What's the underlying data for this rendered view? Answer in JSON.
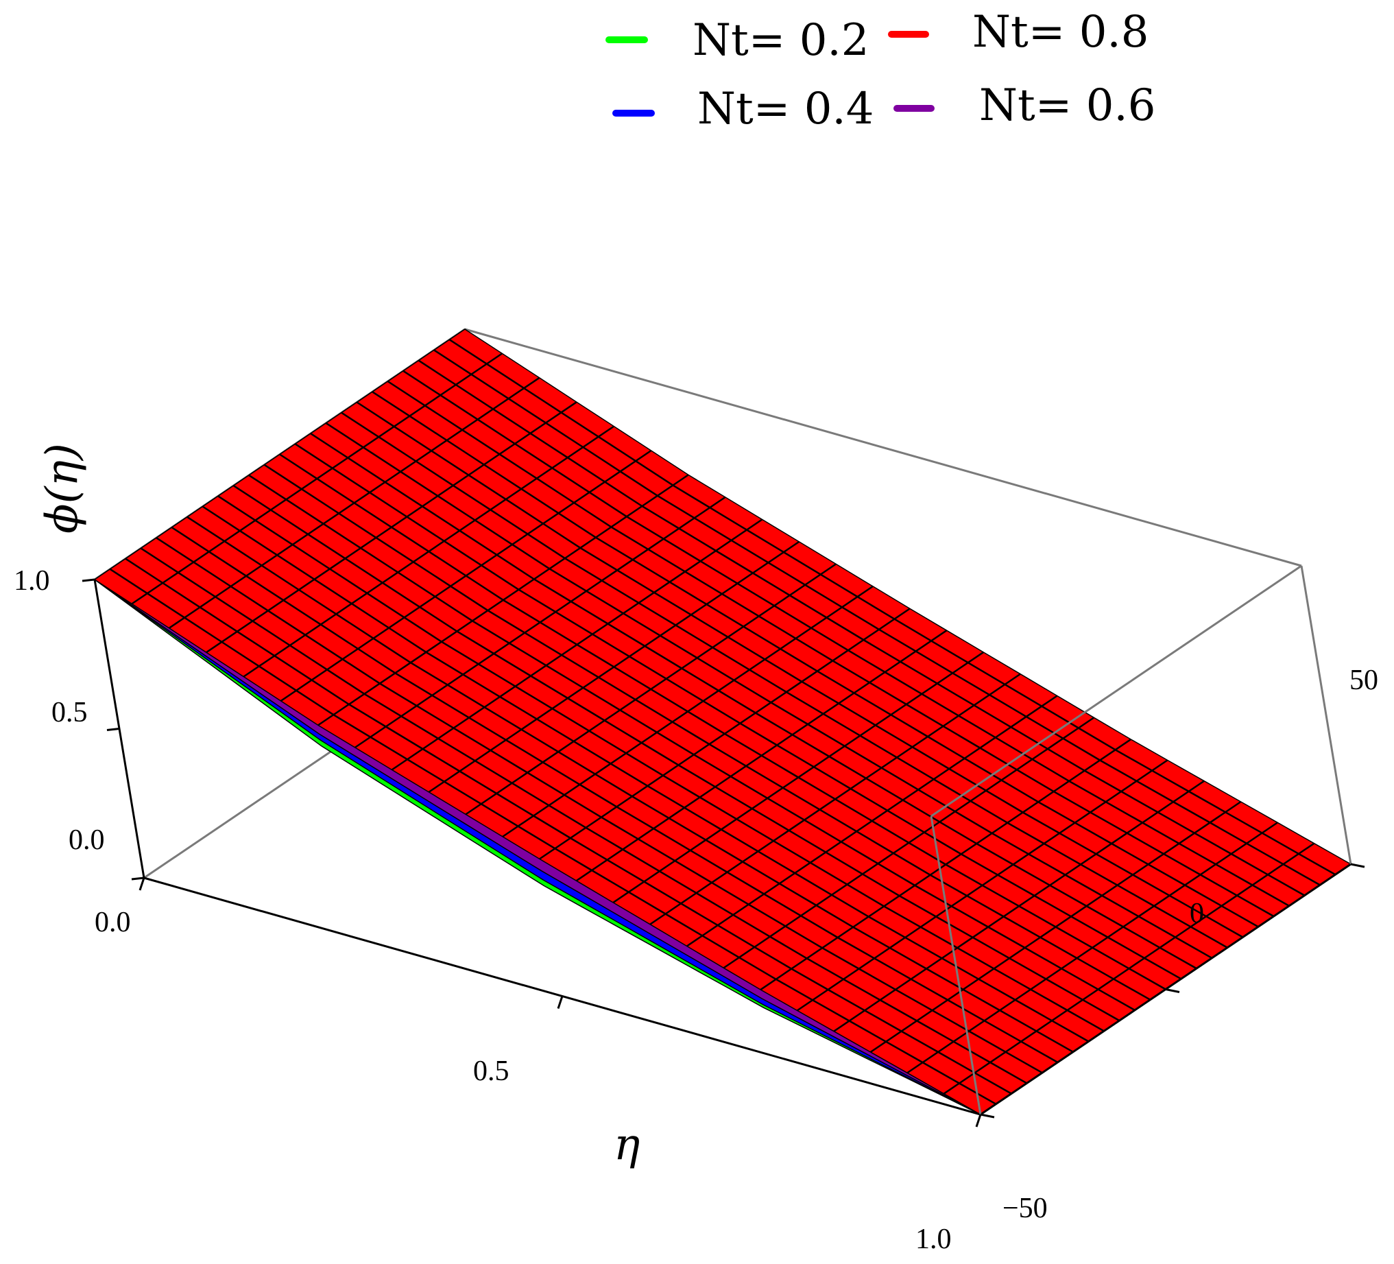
{
  "chart_data": {
    "type": "surface3d",
    "title": "",
    "xlabel": "η",
    "ylabel": "",
    "zlabel": "ϕ(η)",
    "x_range": [
      0.0,
      1.0
    ],
    "y_range": [
      -50,
      50
    ],
    "z_range": [
      0.0,
      1.0
    ],
    "x_ticks": [
      "0.0",
      "0.5",
      "1.0"
    ],
    "y_ticks": [
      "−50",
      "0",
      "50"
    ],
    "z_ticks": [
      "0.0",
      "0.5",
      "1.0"
    ],
    "x_tick_values": [
      0.0,
      0.5,
      1.0
    ],
    "y_tick_values": [
      -50,
      0,
      50
    ],
    "z_tick_values": [
      0.0,
      0.5,
      1.0
    ],
    "legend_position": "top",
    "series": [
      {
        "name": "Nt= 0.2",
        "color": "#00ff00",
        "x": [
          0.0,
          0.25,
          0.5,
          0.75,
          1.0
        ],
        "z": [
          1.0,
          0.64,
          0.37,
          0.16,
          0.0
        ]
      },
      {
        "name": "Nt= 0.8",
        "color": "#ff0000",
        "x": [
          0.0,
          0.25,
          0.5,
          0.75,
          1.0
        ],
        "z": [
          1.0,
          0.71,
          0.46,
          0.22,
          0.0
        ]
      },
      {
        "name": "Nt= 0.4",
        "color": "#0000ff",
        "x": [
          0.0,
          0.25,
          0.5,
          0.75,
          1.0
        ],
        "z": [
          1.0,
          0.66,
          0.39,
          0.17,
          0.0
        ]
      },
      {
        "name": "Nt= 0.6",
        "color": "#7f00a0",
        "x": [
          0.0,
          0.25,
          0.5,
          0.75,
          1.0
        ],
        "z": [
          1.0,
          0.68,
          0.42,
          0.19,
          0.0
        ]
      }
    ]
  }
}
